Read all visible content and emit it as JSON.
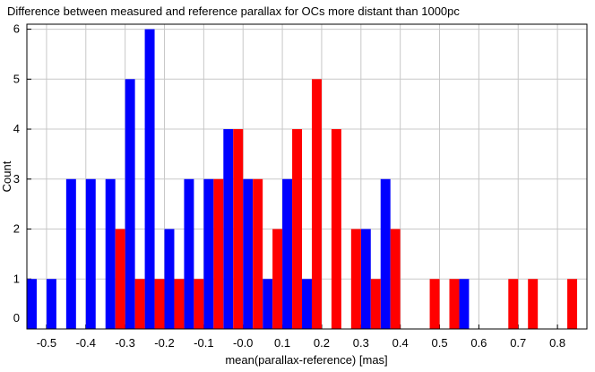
{
  "chart_data": {
    "type": "histogram",
    "title": "Difference between measured and reference parallax for OCs more distant than 1000pc",
    "xlabel": "mean(parallax-reference) [mas]",
    "ylabel": "Count",
    "bins": [
      -0.55,
      -0.5,
      -0.45,
      -0.4,
      -0.35,
      -0.3,
      -0.25,
      -0.2,
      -0.15,
      -0.1,
      -0.05,
      0,
      0.05,
      0.1,
      0.15,
      0.2,
      0.25,
      0.3,
      0.35,
      0.4,
      0.45,
      0.5,
      0.55,
      0.6,
      0.65,
      0.7,
      0.75,
      0.8,
      0.85
    ],
    "series": [
      {
        "color": "#0000ff",
        "values": [
          1,
          1,
          3,
          3,
          3,
          5,
          6,
          2,
          3,
          3,
          4,
          3,
          1,
          3,
          1,
          0,
          0,
          2,
          3,
          0,
          0,
          0,
          1,
          0,
          0,
          0,
          0,
          0
        ]
      },
      {
        "color": "#ff0000",
        "values": [
          0,
          0,
          0,
          0,
          2,
          1,
          1,
          1,
          1,
          3,
          4,
          3,
          2,
          4,
          5,
          4,
          2,
          1,
          2,
          0,
          1,
          1,
          0,
          0,
          1,
          1,
          0,
          1
        ]
      }
    ],
    "xlim": [
      -0.55,
      0.875
    ],
    "ylim": [
      0,
      6.1
    ],
    "xticks": [
      -0.5,
      -0.4,
      -0.3,
      -0.2,
      -0.1,
      {
        "value": 0,
        "label": "-0.0"
      },
      0.1,
      0.2,
      0.3,
      0.4,
      0.5,
      0.6,
      0.7,
      0.8
    ],
    "yticks": [
      0,
      1,
      2,
      3,
      4,
      5,
      6
    ],
    "grid": true
  }
}
